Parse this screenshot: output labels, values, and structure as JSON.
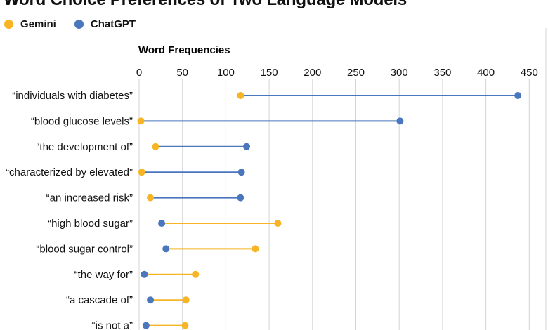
{
  "chart_data": {
    "type": "dumbbell",
    "title": "Word Choice Preferences of Two Language Models",
    "xlabel": "Word Frequencies",
    "xlim": [
      0,
      460
    ],
    "xticks": [
      0,
      50,
      100,
      150,
      200,
      250,
      300,
      350,
      400,
      450
    ],
    "grid": true,
    "legend": "top-left",
    "categories": [
      "“individuals with diabetes”",
      "“blood glucose levels”",
      "“the development of”",
      "“characterized by elevated”",
      "“an increased risk”",
      "“high blood sugar”",
      "“blood sugar control”",
      "“the way for”",
      "“a cascade of”",
      "“is not a”"
    ],
    "series": [
      {
        "name": "Gemini",
        "color": "#F7B526",
        "values": [
          117,
          2,
          19,
          3,
          13,
          160,
          134,
          65,
          54,
          53
        ]
      },
      {
        "name": "ChatGPT",
        "color": "#4A76BE",
        "values": [
          437,
          301,
          124,
          118,
          117,
          26,
          31,
          6,
          13,
          8
        ]
      }
    ]
  }
}
